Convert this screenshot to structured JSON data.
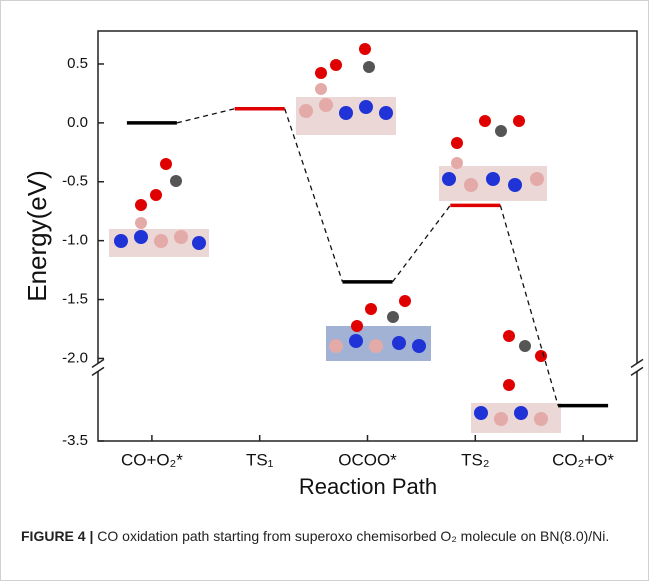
{
  "chart_data": {
    "type": "energy-levels",
    "ylabel": "Energy(eV)",
    "xlabel": "Reaction Path",
    "categories": [
      "CO+O₂*",
      "TS₁",
      "OCOO*",
      "TS₂",
      "CO₂+O*"
    ],
    "values": [
      0.0,
      0.12,
      -1.35,
      -0.7,
      -3.2
    ],
    "colors": [
      "#000000",
      "#e00000",
      "#000000",
      "#e00000",
      "#000000"
    ],
    "ylim": [
      -3.5,
      0.78
    ],
    "ybreak": [
      -2.05,
      -2.9
    ],
    "yticks": [
      0.5,
      {
        "value": 0,
        "label": "0.0"
      },
      -0.5,
      {
        "value": -1,
        "label": "-1.0"
      },
      -1.5,
      {
        "value": -2,
        "label": "-2.0"
      },
      -3.5
    ]
  },
  "caption_label": "FIGURE 4 |",
  "caption": "CO oxidation path starting from superoxo chemisorbed O₂ molecule on BN(8.0)/Ni."
}
